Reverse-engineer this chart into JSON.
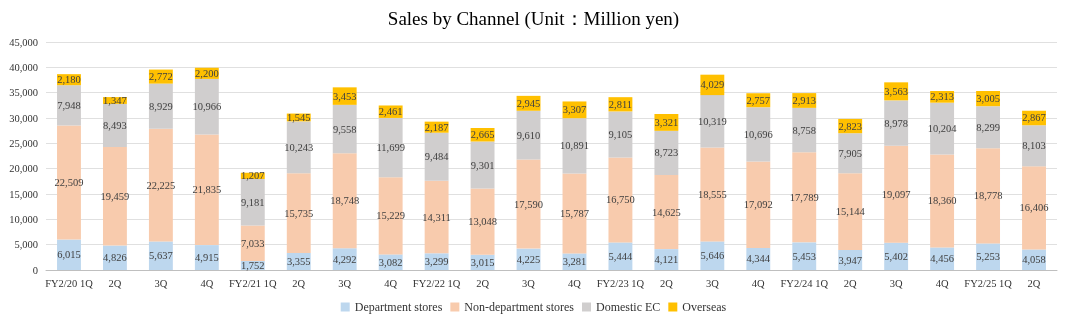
{
  "chart_data": {
    "type": "bar",
    "title": "Sales by Channel (Unit：Million yen)",
    "categories": [
      "FY2/20 1Q",
      "2Q",
      "3Q",
      "4Q",
      "FY2/21 1Q",
      "2Q",
      "3Q",
      "4Q",
      "FY2/22 1Q",
      "2Q",
      "3Q",
      "4Q",
      "FY2/23 1Q",
      "2Q",
      "3Q",
      "4Q",
      "FY2/24 1Q",
      "2Q",
      "3Q",
      "4Q",
      "FY2/25 1Q",
      "2Q"
    ],
    "series": [
      {
        "name": "Department stores",
        "color": "#bdd7ee",
        "values": [
          6015,
          4826,
          5637,
          4915,
          1752,
          3355,
          4292,
          3082,
          3299,
          3015,
          4225,
          3281,
          5444,
          4121,
          5646,
          4344,
          5453,
          3947,
          5402,
          4456,
          5253,
          4058
        ],
        "value_labels": [
          "6,015",
          "4,826",
          "5,637",
          "4,915",
          "1,752",
          "3,355",
          "4,292",
          "3,082",
          "3,299",
          "3,015",
          "4,225",
          "3,281",
          "5,444",
          "4,121",
          "5,646",
          "4,344",
          "5,453",
          "3,947",
          "5,402",
          "4,456",
          "5,253",
          "4,058"
        ]
      },
      {
        "name": "Non-department stores",
        "color": "#f8cbad",
        "values": [
          22509,
          19459,
          22225,
          21835,
          7033,
          15735,
          18748,
          15229,
          14311,
          13048,
          17590,
          15787,
          16750,
          14625,
          18555,
          17092,
          17789,
          15144,
          19097,
          18360,
          18778,
          16406
        ],
        "value_labels": [
          "22,509",
          "19,459",
          "22,225",
          "21,835",
          "7,033",
          "15,735",
          "18,748",
          "15,229",
          "14,311",
          "13,048",
          "17,590",
          "15,787",
          "16,750",
          "14,625",
          "18,555",
          "17,092",
          "17,789",
          "15,144",
          "19,097",
          "18,360",
          "18,778",
          "16,406"
        ]
      },
      {
        "name": "Domestic EC",
        "color": "#d0cece",
        "values": [
          7948,
          8493,
          8929,
          10966,
          9181,
          10243,
          9558,
          11699,
          9484,
          9301,
          9610,
          10891,
          9105,
          8723,
          10319,
          10696,
          8758,
          7905,
          8978,
          10204,
          8299,
          8103
        ],
        "value_labels": [
          "7,948",
          "8,493",
          "8,929",
          "10,966",
          "9,181",
          "10,243",
          "9,558",
          "11,699",
          "9,484",
          "9,301",
          "9,610",
          "10,891",
          "9,105",
          "8,723",
          "10,319",
          "10,696",
          "8,758",
          "7,905",
          "8,978",
          "10,204",
          "8,299",
          "8,103"
        ]
      },
      {
        "name": "Overseas",
        "color": "#ffc000",
        "values": [
          2180,
          1347,
          2772,
          2200,
          1207,
          1545,
          3453,
          2461,
          2187,
          2665,
          2945,
          3307,
          2811,
          3321,
          4029,
          2757,
          2913,
          2823,
          3563,
          2313,
          3005,
          2867
        ],
        "value_labels": [
          "2,180",
          "1,347",
          "2,772",
          "2,200",
          "1,207",
          "1,545",
          "3,453",
          "2,461",
          "2,187",
          "2,665",
          "2,945",
          "3,307",
          "2,811",
          "3,321",
          "4,029",
          "2,757",
          "2,913",
          "2,823",
          "3,563",
          "2,313",
          "3,005",
          "2,867"
        ]
      }
    ],
    "stacked": true,
    "ylim": [
      0,
      45000
    ],
    "yticks": [
      {
        "value": 0,
        "label": "0"
      },
      {
        "value": 5000,
        "label": "5,000"
      },
      {
        "value": 10000,
        "label": "10,000"
      },
      {
        "value": 15000,
        "label": "15,000"
      },
      {
        "value": 20000,
        "label": "20,000"
      },
      {
        "value": 25000,
        "label": "25,000"
      },
      {
        "value": 30000,
        "label": "30,000"
      },
      {
        "value": 35000,
        "label": "35,000"
      },
      {
        "value": 40000,
        "label": "40,000"
      },
      {
        "value": 45000,
        "label": "45,000"
      }
    ],
    "grid": "y",
    "legend": "bottom"
  }
}
